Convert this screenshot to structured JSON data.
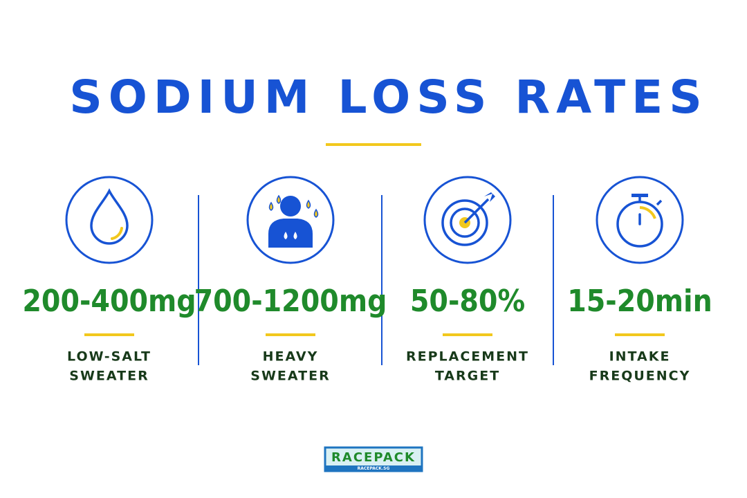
{
  "header": {
    "title": "SODIUM LOSS RATES"
  },
  "stats": [
    {
      "value": "200-400mg",
      "label": [
        "LOW-SALT",
        "SWEATER"
      ]
    },
    {
      "value": "700-1200mg",
      "label": [
        "HEAVY",
        "SWEATER"
      ]
    },
    {
      "value": "50-80%",
      "label": [
        "REPLACEMENT",
        "TARGET"
      ]
    },
    {
      "value": "15-20min",
      "label": [
        "INTAKE",
        "FREQUENCY"
      ]
    }
  ],
  "footer": {
    "logo": "RACEPACK",
    "site": "RACEPACK.SG"
  }
}
